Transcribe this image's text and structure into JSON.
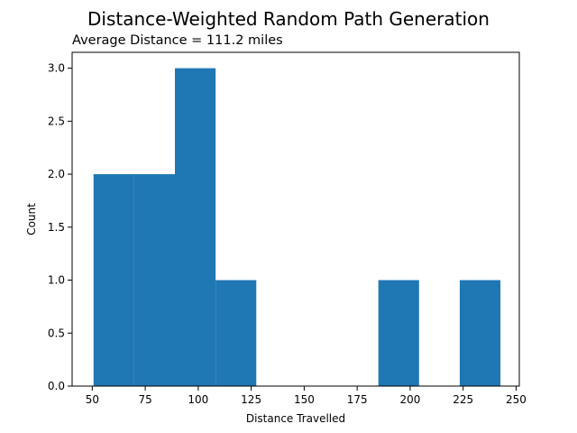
{
  "chart_data": {
    "type": "histogram",
    "title": "Distance-Weighted Random Path Generation",
    "subtitle": "Average Distance = 111.2 miles",
    "xlabel": "Distance Travelled",
    "ylabel": "Count",
    "xlim": [
      40.5,
      251.5
    ],
    "ylim": [
      0,
      3.15
    ],
    "xticks": [
      50,
      75,
      100,
      125,
      150,
      175,
      200,
      225,
      250
    ],
    "yticks": [
      0.0,
      0.5,
      1.0,
      1.5,
      2.0,
      2.5,
      3.0
    ],
    "bins": [
      {
        "x0": 50.6,
        "x1": 69.8,
        "count": 2
      },
      {
        "x0": 69.8,
        "x1": 89.0,
        "count": 2
      },
      {
        "x0": 89.0,
        "x1": 108.2,
        "count": 3
      },
      {
        "x0": 108.2,
        "x1": 127.4,
        "count": 1
      },
      {
        "x0": 127.4,
        "x1": 146.6,
        "count": 0
      },
      {
        "x0": 146.6,
        "x1": 165.8,
        "count": 0
      },
      {
        "x0": 165.8,
        "x1": 185.0,
        "count": 0
      },
      {
        "x0": 185.0,
        "x1": 204.2,
        "count": 1
      },
      {
        "x0": 204.2,
        "x1": 223.4,
        "count": 0
      },
      {
        "x0": 223.4,
        "x1": 242.6,
        "count": 1
      }
    ],
    "bar_color": "#1f77b4",
    "grid": false
  }
}
